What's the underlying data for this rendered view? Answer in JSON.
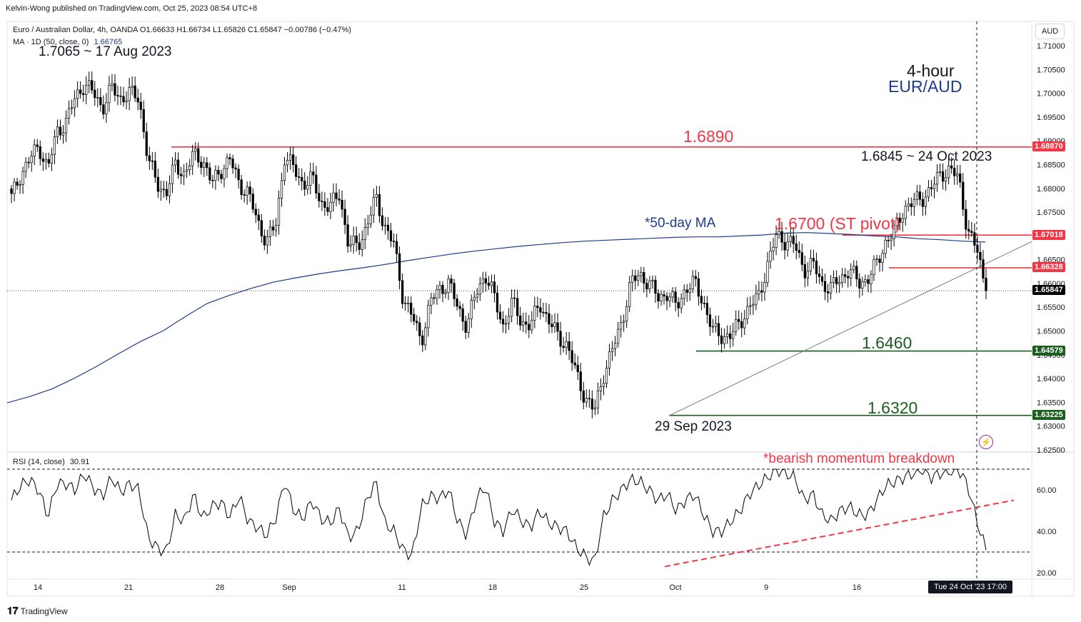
{
  "header": {
    "published": "Kelvin-Wong published on TradingView.com, Oct 25, 2023 08:54 UTC+8",
    "symbol_line": "Euro / Australian Dollar, 4h, OANDA  O1.66633  H1.66734  L1.65826  C1.65847  −0.00786 (−0.47%)",
    "ma_line_label": "MA · 1D (50, close, 0)",
    "ma_line_value": "1.66765",
    "currency": "AUD"
  },
  "branding": {
    "footer": "TradingView",
    "icon": "tradingview-logo-icon"
  },
  "chart_data": [
    {
      "type": "line",
      "title": "EUR/AUD",
      "timeframe": "4-hour",
      "y_axis_ticks": [
        "1.71000",
        "1.70500",
        "1.70000",
        "1.69500",
        "1.69000",
        "1.68500",
        "1.68000",
        "1.67500",
        "1.67000",
        "1.66500",
        "1.66000",
        "1.65500",
        "1.65000",
        "1.64500",
        "1.64000",
        "1.63500",
        "1.63000",
        "1.62500"
      ],
      "x_axis_ticks": [
        "14",
        "21",
        "28",
        "Sep",
        "11",
        "18",
        "25",
        "Oct",
        "9",
        "16"
      ],
      "x_axis_crosshair_label": "Tue 24 Oct '23   17:00",
      "price_series_close_approx": [
        1.678,
        1.683,
        1.686,
        1.689,
        1.684,
        1.692,
        1.694,
        1.699,
        1.702,
        1.7,
        1.697,
        1.701,
        1.699,
        1.7,
        1.699,
        1.686,
        1.681,
        1.679,
        1.685,
        1.683,
        1.687,
        1.686,
        1.681,
        1.684,
        1.686,
        1.681,
        1.679,
        1.673,
        1.669,
        1.672,
        1.687,
        1.684,
        1.681,
        1.682,
        1.677,
        1.676,
        1.679,
        1.668,
        1.668,
        1.672,
        1.678,
        1.672,
        1.668,
        1.657,
        1.653,
        1.648,
        1.656,
        1.659,
        1.66,
        1.655,
        1.651,
        1.658,
        1.662,
        1.657,
        1.651,
        1.656,
        1.652,
        1.651,
        1.656,
        1.652,
        1.649,
        1.647,
        1.641,
        1.636,
        1.633,
        1.641,
        1.646,
        1.652,
        1.66,
        1.662,
        1.66,
        1.657,
        1.658,
        1.655,
        1.659,
        1.66,
        1.656,
        1.65,
        1.649,
        1.649,
        1.652,
        1.655,
        1.657,
        1.664,
        1.67,
        1.669,
        1.668,
        1.663,
        1.664,
        1.66,
        1.659,
        1.661,
        1.663,
        1.66,
        1.661,
        1.664,
        1.669,
        1.671,
        1.676,
        1.677,
        1.678,
        1.68,
        1.683,
        1.684,
        1.682,
        1.671,
        1.667,
        1.659
      ],
      "last_close": 1.65847,
      "ma_series": {
        "name": "MA · 1D (50, close, 0)",
        "color": "#1e3a8a",
        "values_approx": [
          1.6349,
          1.6362,
          1.6378,
          1.64,
          1.6425,
          1.6452,
          1.6478,
          1.65,
          1.653,
          1.6558,
          1.6575,
          1.659,
          1.6603,
          1.6612,
          1.662,
          1.6627,
          1.6633,
          1.664,
          1.6648,
          1.6655,
          1.6662,
          1.6668,
          1.6673,
          1.6678,
          1.6682,
          1.6686,
          1.6689,
          1.6691,
          1.6693,
          1.6695,
          1.6697,
          1.6698,
          1.6698,
          1.67,
          1.6702,
          1.6706,
          1.6707,
          1.6705,
          1.6703,
          1.67,
          1.6698,
          1.6694,
          1.6692,
          1.6689,
          1.6687
        ]
      },
      "horizontal_levels": [
        {
          "value": 1.6887,
          "axis_tag": "1.68870",
          "annotation": "1.6890",
          "color": "#f23645"
        },
        {
          "value": 1.67018,
          "axis_tag": "1.67018",
          "annotation": "1.6700 (ST pivot)",
          "color": "#f23645"
        },
        {
          "value": 1.66328,
          "axis_tag": "1.66328",
          "annotation": "",
          "color": "#f23645"
        },
        {
          "value": 1.64579,
          "axis_tag": "1.64579",
          "annotation": "1.6460",
          "color": "#1b5e20"
        },
        {
          "value": 1.63225,
          "axis_tag": "1.63225",
          "annotation": "1.6320",
          "color": "#1b5e20"
        }
      ],
      "last_price_tag": "1.65847",
      "annotations": {
        "high_aug": "1.7065 ~ 17 Aug 2023",
        "high_oct": "1.6845 ~ 24 Oct 2023",
        "low_sep": "29 Sep 2023",
        "ma_label": "*50-day MA",
        "timeframe_label": "4-hour",
        "pair_label": "EUR/AUD"
      }
    },
    {
      "type": "line",
      "title": "RSI (14, close)",
      "current_value": "30.91",
      "y_axis_ticks": [
        "60.00",
        "40.00",
        "20.00"
      ],
      "reference_levels": [
        70,
        30
      ],
      "ylim": [
        20,
        70
      ],
      "annotation": "*bearish momentum breakdown",
      "rsi_series_approx": [
        55,
        62,
        65,
        60,
        47,
        63,
        63,
        60,
        68,
        61,
        57,
        66,
        59,
        63,
        60,
        37,
        32,
        30,
        48,
        45,
        58,
        46,
        52,
        54,
        47,
        57,
        45,
        42,
        38,
        46,
        64,
        50,
        46,
        55,
        46,
        44,
        51,
        37,
        40,
        55,
        64,
        44,
        40,
        31,
        28,
        52,
        57,
        56,
        60,
        45,
        38,
        55,
        62,
        45,
        40,
        51,
        45,
        42,
        50,
        44,
        42,
        40,
        32,
        28,
        25,
        47,
        55,
        60,
        65,
        64,
        60,
        55,
        58,
        50,
        55,
        58,
        48,
        40,
        40,
        45,
        50,
        58,
        62,
        66,
        70,
        68,
        66,
        55,
        58,
        48,
        45,
        50,
        52,
        48,
        48,
        55,
        62,
        64,
        66,
        68,
        70,
        66,
        68,
        69,
        70,
        62,
        45,
        31
      ],
      "trendline_annotation_color": "#f23645"
    }
  ],
  "colors": {
    "bearish_red": "#f23645",
    "support_green": "#1b5e20",
    "ma_blue": "#1e3a8a",
    "candles": "#000000"
  }
}
